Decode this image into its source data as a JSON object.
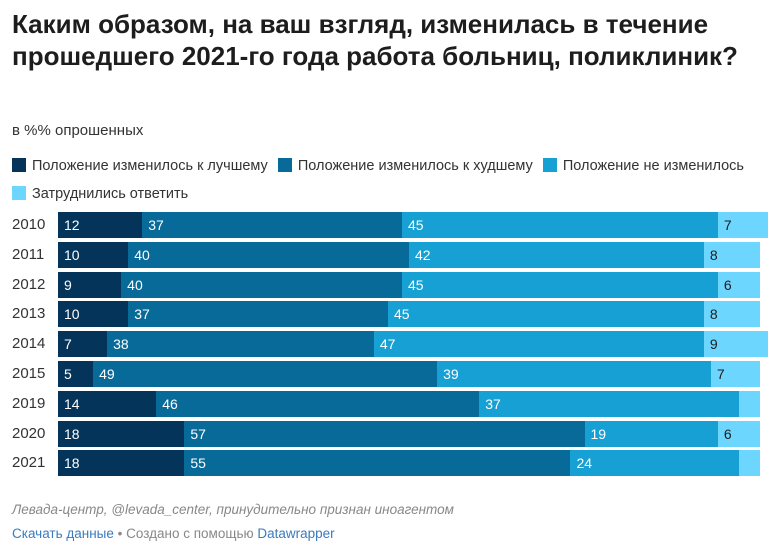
{
  "title": "Каким образом, на ваш взгляд, изменилась в течение прошедшего 2021-го года работа больниц, поликлиник?",
  "subtitle": "в %% опрошенных",
  "legend": [
    {
      "label": "Положение изменилось к лучшему",
      "color": "#043459"
    },
    {
      "label": "Положение изменилось к худшему",
      "color": "#086a99"
    },
    {
      "label": "Положение не изменилось",
      "color": "#16a0d3"
    },
    {
      "label": "Затруднились ответить",
      "color": "#6dd6ff"
    }
  ],
  "chart_data": {
    "type": "bar",
    "orientation": "horizontal",
    "stacked": true,
    "categories": [
      "2010",
      "2011",
      "2012",
      "2013",
      "2014",
      "2015",
      "2019",
      "2020",
      "2021"
    ],
    "series": [
      {
        "name": "Положение изменилось к лучшему",
        "color": "#043459",
        "values": [
          12,
          10,
          9,
          10,
          7,
          5,
          14,
          18,
          18
        ]
      },
      {
        "name": "Положение изменилось к худшему",
        "color": "#086a99",
        "values": [
          37,
          40,
          40,
          37,
          38,
          49,
          46,
          57,
          55
        ]
      },
      {
        "name": "Положение не изменилось",
        "color": "#16a0d3",
        "values": [
          45,
          42,
          45,
          45,
          47,
          39,
          37,
          19,
          24
        ]
      },
      {
        "name": "Затруднились ответить",
        "color": "#6dd6ff",
        "values": [
          7,
          8,
          6,
          8,
          9,
          7,
          3,
          6,
          3
        ]
      }
    ],
    "labels": [
      [
        "12",
        "37",
        "45",
        "7"
      ],
      [
        "10",
        "40",
        "42",
        "8"
      ],
      [
        "9",
        "40",
        "45",
        "6"
      ],
      [
        "10",
        "37",
        "45",
        "8"
      ],
      [
        "7",
        "38",
        "47",
        "9"
      ],
      [
        "5",
        "49",
        "39",
        "7"
      ],
      [
        "14",
        "46",
        "37",
        ""
      ],
      [
        "18",
        "57",
        "19",
        "6"
      ],
      [
        "18",
        "55",
        "24",
        ""
      ]
    ],
    "xlim": [
      0,
      100
    ]
  },
  "footer": {
    "source": "Левада-центр, @levada_center, принудительно признан иноагентом",
    "download_label": "Скачать данные",
    "separator": "• Создано с помощью",
    "tool_label": "Datawrapper"
  }
}
